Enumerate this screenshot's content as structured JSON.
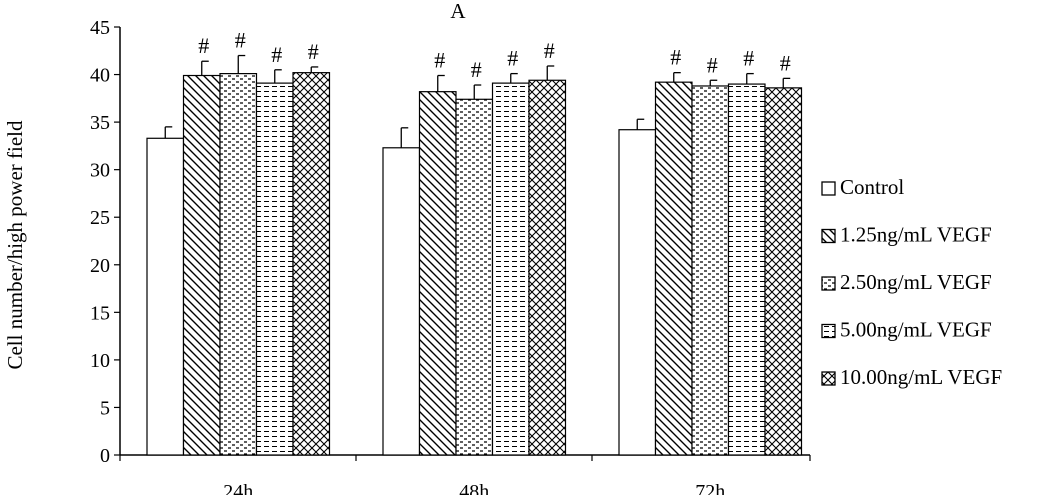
{
  "chart_data": {
    "type": "bar",
    "title": "A",
    "xlabel": "",
    "ylabel": "Cell number/high power field",
    "ylim": [
      0,
      45
    ],
    "yticks": [
      0,
      5,
      10,
      15,
      20,
      25,
      30,
      35,
      40,
      45
    ],
    "categories": [
      "24h",
      "48h",
      "72h"
    ],
    "legend_position": "right",
    "grid": false,
    "series": [
      {
        "name": "Control",
        "pattern": "blank",
        "values": [
          33.3,
          32.3,
          34.2
        ],
        "errors": [
          1.2,
          2.1,
          1.1
        ],
        "significance": [
          "",
          "",
          ""
        ]
      },
      {
        "name": "1.25ng/mL VEGF",
        "pattern": "diagonal",
        "values": [
          39.9,
          38.2,
          39.2
        ],
        "errors": [
          1.5,
          1.7,
          1.0
        ],
        "significance": [
          "#",
          "#",
          "#"
        ]
      },
      {
        "name": "2.50ng/mL VEGF",
        "pattern": "dashed",
        "values": [
          40.1,
          37.4,
          38.8
        ],
        "errors": [
          1.9,
          1.5,
          0.6
        ],
        "significance": [
          "#",
          "#",
          "#"
        ]
      },
      {
        "name": "5.00ng/mL VEGF",
        "pattern": "horizontal-dash",
        "values": [
          39.1,
          39.1,
          39.0
        ],
        "errors": [
          1.4,
          1.0,
          1.1
        ],
        "significance": [
          "#",
          "#",
          "#"
        ]
      },
      {
        "name": "10.00ng/mL VEGF",
        "pattern": "crosshatch",
        "values": [
          40.2,
          39.4,
          38.6
        ],
        "errors": [
          0.6,
          1.5,
          1.0
        ],
        "significance": [
          "#",
          "#",
          "#"
        ]
      }
    ]
  },
  "colors": {
    "stroke": "#000000",
    "background": "#ffffff"
  }
}
